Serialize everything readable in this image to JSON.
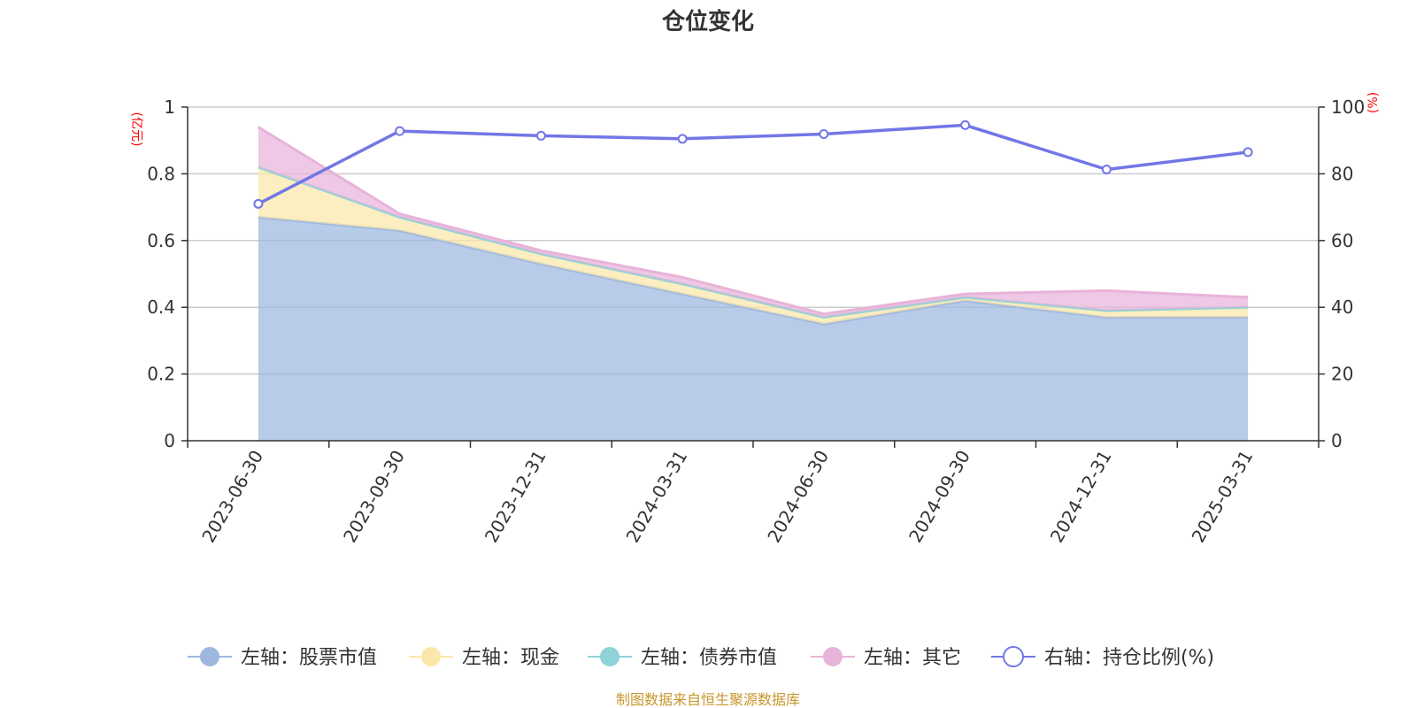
{
  "title": "仓位变化",
  "source_note": "制图数据来自恒生聚源数据库",
  "chart_data": {
    "type": "area",
    "categories": [
      "2023-06-30",
      "2023-09-30",
      "2023-12-31",
      "2024-03-31",
      "2024-06-30",
      "2024-09-30",
      "2024-12-31",
      "2025-03-31"
    ],
    "left_axis": {
      "unit": "(亿元)",
      "range": [
        0,
        1
      ],
      "ticks": [
        "0",
        "0.2",
        "0.4",
        "0.6",
        "0.8",
        "1"
      ]
    },
    "right_axis": {
      "unit": "(%)",
      "range": [
        0,
        100
      ],
      "ticks": [
        "0",
        "20",
        "40",
        "60",
        "80",
        "100"
      ]
    },
    "series": [
      {
        "name": "左轴：股票市值",
        "axis": "left",
        "type": "area",
        "color": "#9db7e0",
        "values": [
          0.67,
          0.63,
          0.53,
          0.44,
          0.35,
          0.42,
          0.37,
          0.37
        ]
      },
      {
        "name": "左轴：现金",
        "axis": "left",
        "type": "area",
        "color": "#fbe8a8",
        "values": [
          0.15,
          0.04,
          0.03,
          0.03,
          0.02,
          0.01,
          0.02,
          0.03
        ]
      },
      {
        "name": "左轴：债券市值",
        "axis": "left",
        "type": "area",
        "color": "#8fd3d8",
        "values": [
          0,
          0,
          0,
          0,
          0,
          0,
          0,
          0
        ]
      },
      {
        "name": "左轴：其它",
        "axis": "left",
        "type": "area",
        "color": "#e8b3d9",
        "values": [
          0.12,
          0.01,
          0.01,
          0.02,
          0.01,
          0.01,
          0.06,
          0.03
        ]
      },
      {
        "name": "右轴：持仓比例(%)",
        "axis": "right",
        "type": "line",
        "color": "#7276e6",
        "values": [
          71.0,
          92.8,
          91.4,
          90.5,
          91.9,
          94.6,
          81.3,
          86.5
        ]
      }
    ],
    "grid": true,
    "legend_position": "bottom"
  }
}
